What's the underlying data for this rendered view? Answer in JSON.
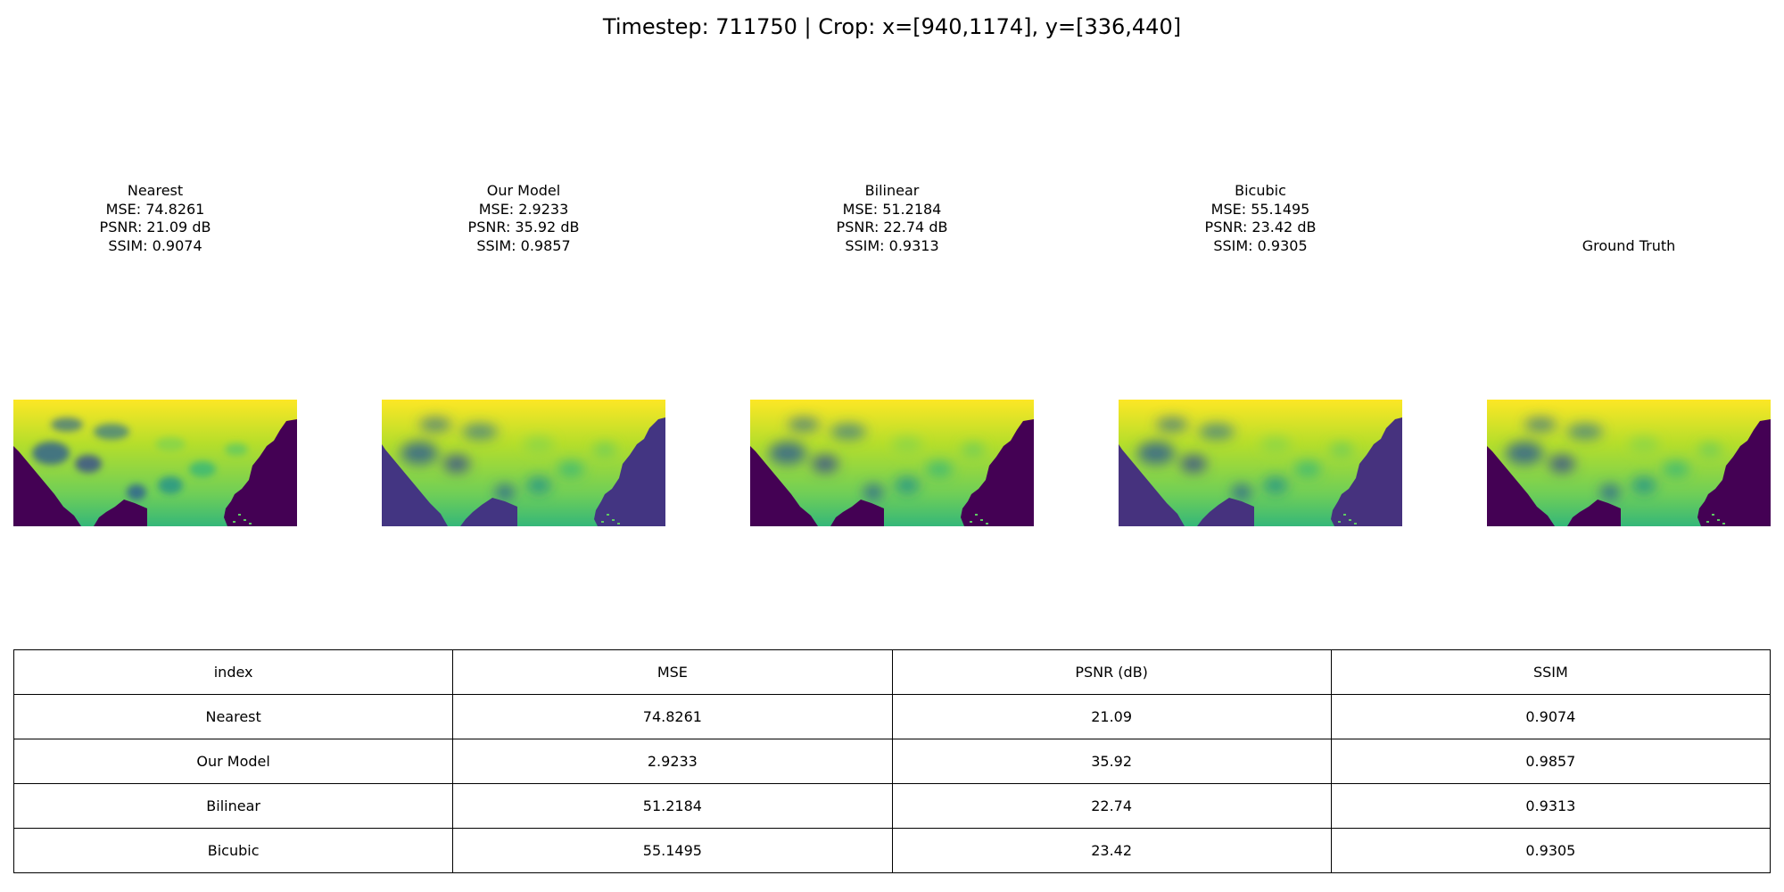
{
  "figure": {
    "suptitle": "Timestep: 711750 | Crop: x=[940,1174], y=[336,440]"
  },
  "panels": [
    {
      "method": "Nearest",
      "mse": "MSE: 74.8261",
      "psnr": "PSNR: 21.09 dB",
      "ssim": "SSIM: 0.9074",
      "ocean_color": "#440154",
      "style": "blocky"
    },
    {
      "method": "Our Model",
      "mse": "MSE: 2.9233",
      "psnr": "PSNR: 35.92 dB",
      "ssim": "SSIM: 0.9857",
      "ocean_color": "#433582",
      "style": "smooth"
    },
    {
      "method": "Bilinear",
      "mse": "MSE: 51.2184",
      "psnr": "PSNR: 22.74 dB",
      "ssim": "SSIM: 0.9313",
      "ocean_color": "#440154",
      "style": "smooth"
    },
    {
      "method": "Bicubic",
      "mse": "MSE: 55.1495",
      "psnr": "PSNR: 23.42 dB",
      "ssim": "SSIM: 0.9305",
      "ocean_color": "#46327e",
      "style": "smooth"
    },
    {
      "method": "Ground Truth",
      "mse": "",
      "psnr": "",
      "ssim": "",
      "ocean_color": "#440154",
      "style": "smooth"
    }
  ],
  "chart_data": [
    {
      "type": "heatmap",
      "colormap": "viridis",
      "axes_visible": false,
      "panels": [
        "Nearest",
        "Our Model",
        "Bilinear",
        "Bicubic",
        "Ground Truth"
      ],
      "crop": {
        "x": [
          940,
          1174
        ],
        "y": [
          336,
          440
        ]
      }
    },
    {
      "type": "table",
      "columns": [
        "index",
        "MSE",
        "PSNR (dB)",
        "SSIM"
      ],
      "rows": [
        [
          "Nearest",
          "74.8261",
          "21.09",
          "0.9074"
        ],
        [
          "Our Model",
          "2.9233",
          "35.92",
          "0.9857"
        ],
        [
          "Bilinear",
          "51.2184",
          "22.74",
          "0.9313"
        ],
        [
          "Bicubic",
          "55.1495",
          "23.42",
          "0.9305"
        ]
      ]
    }
  ]
}
